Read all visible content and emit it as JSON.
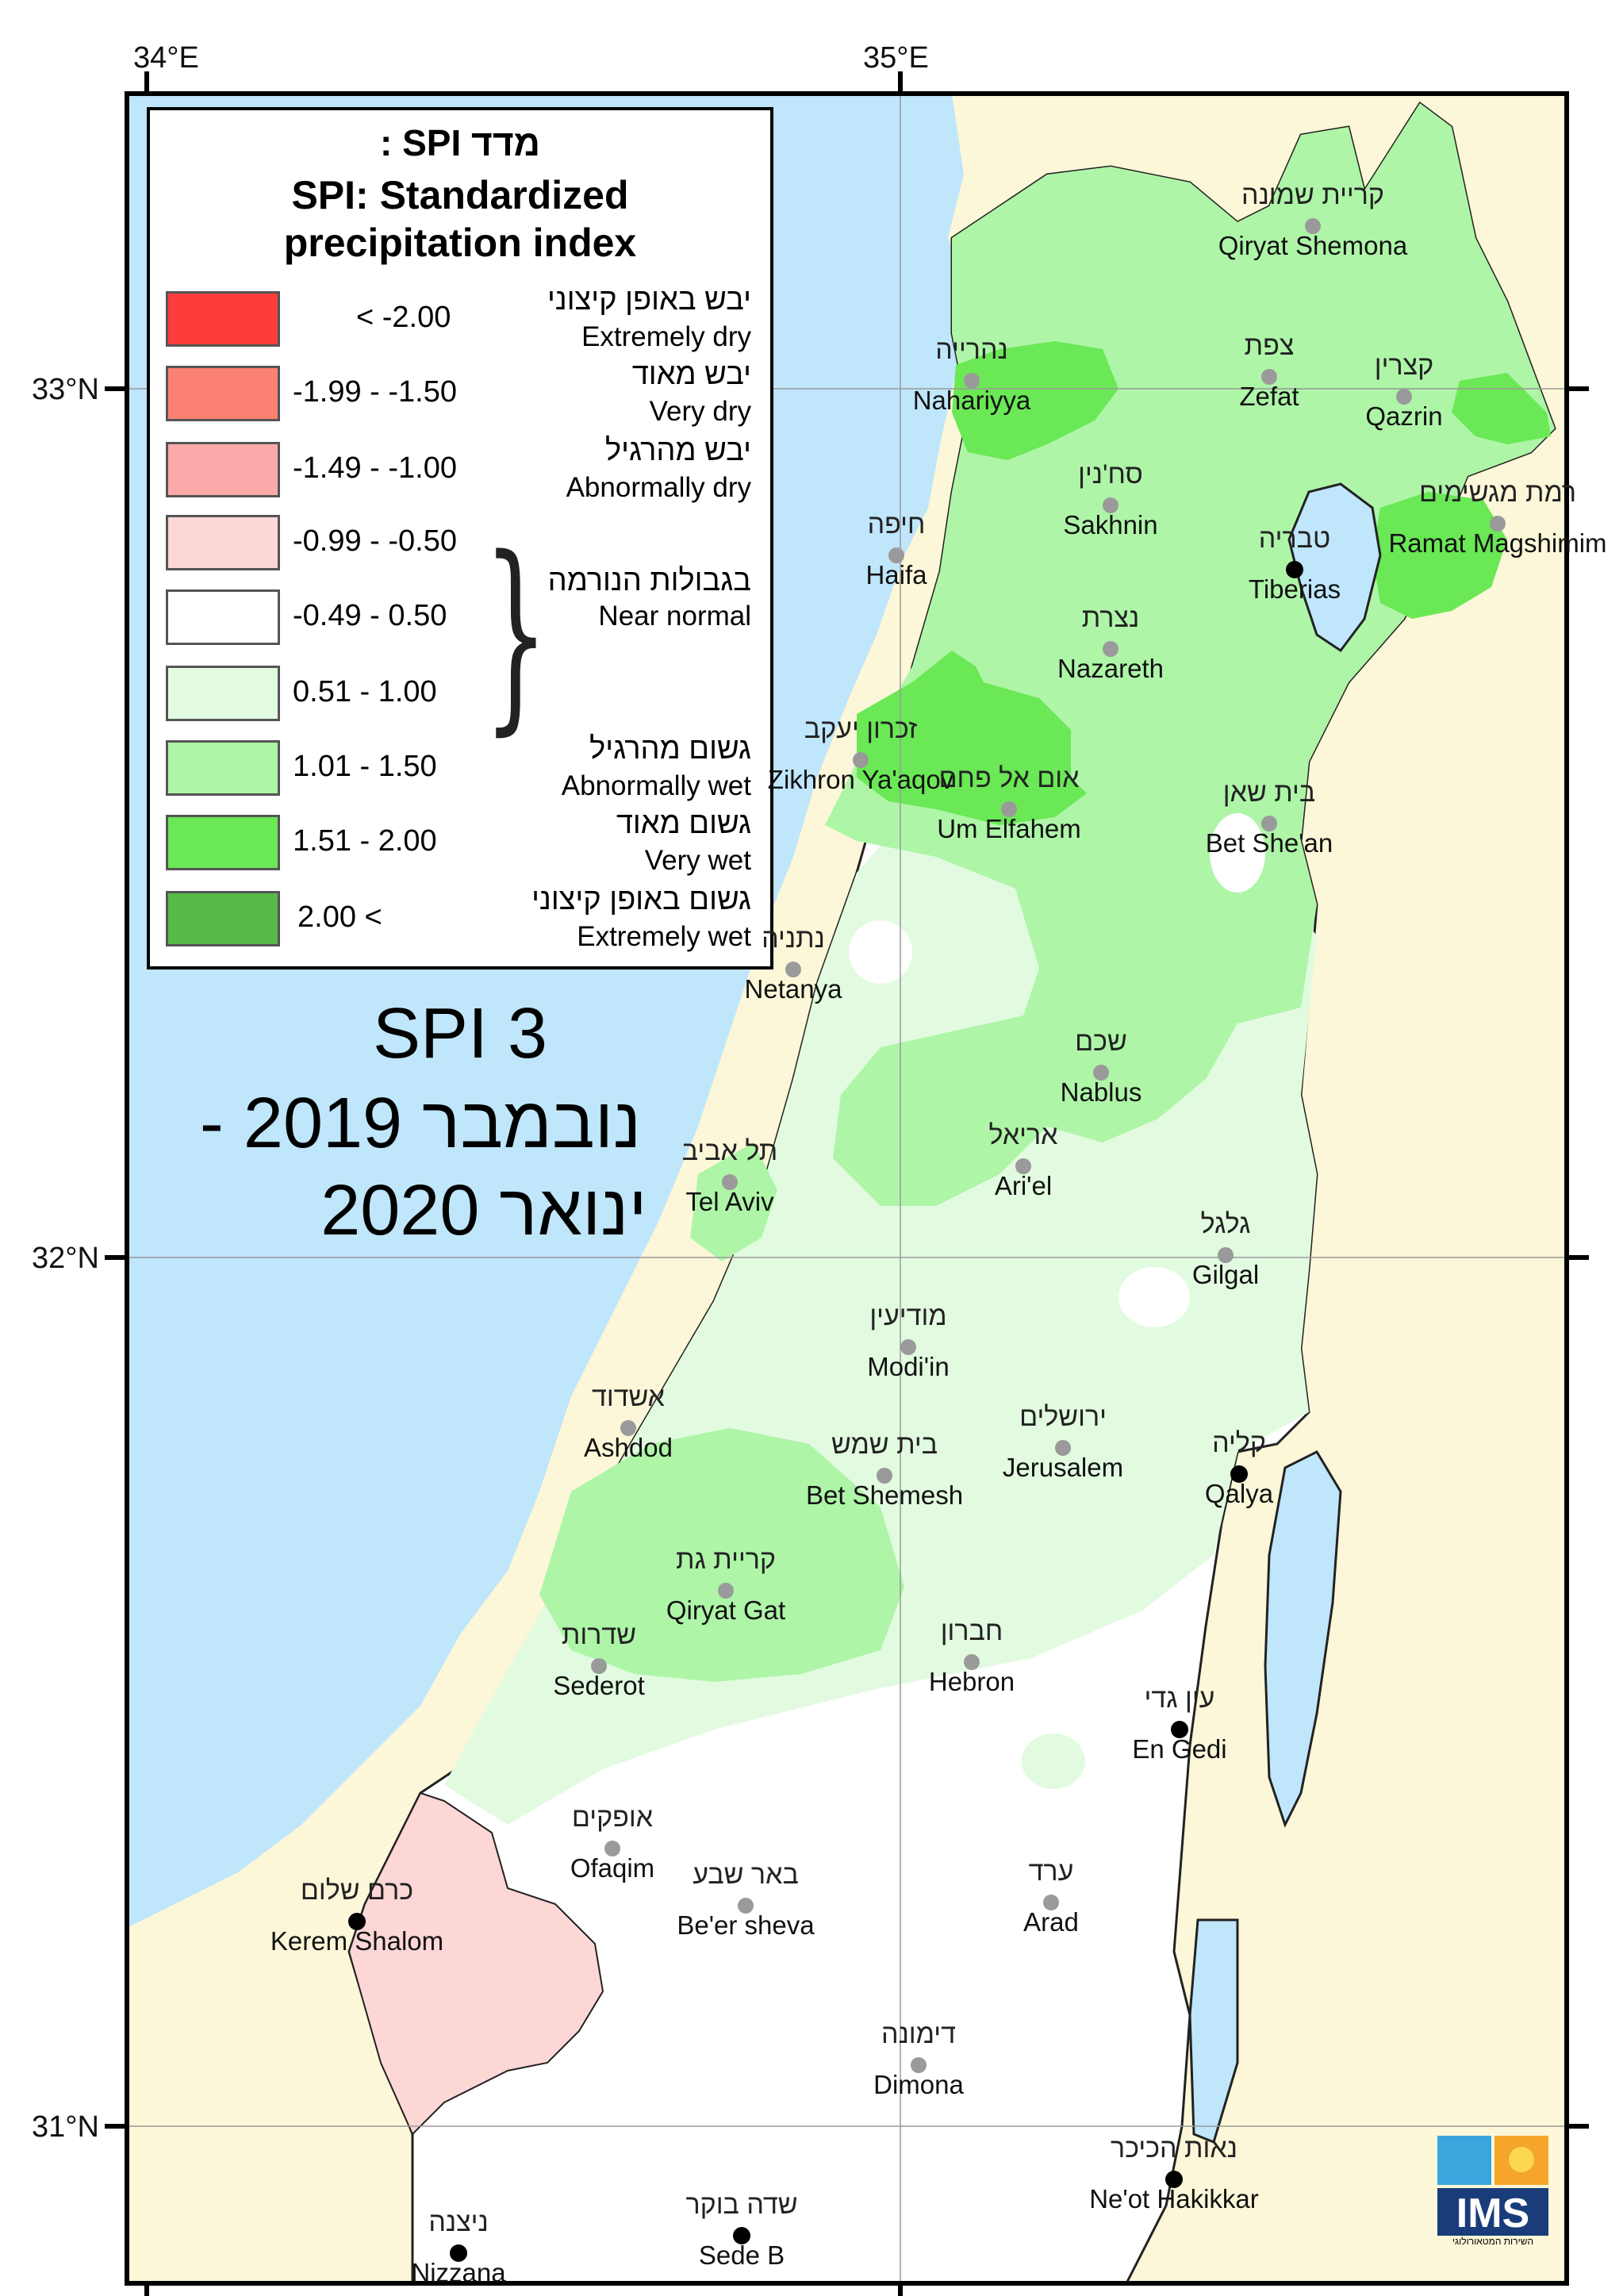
{
  "grid_labels": {
    "lon_34": "34°E",
    "lon_35": "35°E",
    "lat_33": "33°N",
    "lat_32": "32°N",
    "lat_31": "31°N"
  },
  "legend": {
    "title_he": "מדד SPI :",
    "title_en_1": "SPI: Standardized",
    "title_en_2": "precipitation index",
    "classes": [
      {
        "range": "< -2.00",
        "he": "יבש באופן קיצוני",
        "en": "Extremely dry",
        "color": "#ff3c3c"
      },
      {
        "range": "-1.99 - -1.50",
        "he": "יבש מאוד",
        "en": "Very dry",
        "color": "#fb8172"
      },
      {
        "range": "-1.49 - -1.00",
        "he": "יבש מהרגיל",
        "en": "Abnormally dry",
        "color": "#fbaaaa"
      },
      {
        "range": "-0.99 - -0.50",
        "he": "",
        "en": "",
        "color": "#fdd6d6"
      },
      {
        "range": "-0.49 - 0.50",
        "he": "בגבולות הנורמה",
        "en": "Near normal",
        "color": "#ffffff"
      },
      {
        "range": "0.51 - 1.00",
        "he": "",
        "en": "",
        "color": "#e2fbe0"
      },
      {
        "range": "1.01 - 1.50",
        "he": "גשום מהרגיל",
        "en": "Abnormally wet",
        "color": "#aef5a8"
      },
      {
        "range": "1.51 - 2.00",
        "he": "גשום מאוד",
        "en": "Very wet",
        "color": "#6ae855"
      },
      {
        "range": "2.00 <",
        "he": "גשום באופן קיצוני",
        "en": "Extremely wet",
        "color": "#57b947"
      }
    ]
  },
  "map_title": {
    "line1": "SPI 3",
    "line2": "נובמבר 2019  -",
    "line3": "ינואר 2020"
  },
  "colors": {
    "sea": "#bfe6fb",
    "outside_land": "#fcf7d8",
    "near_normal": "#ffffff",
    "slightly_wet": "#e2fbe0",
    "abnormally_wet": "#aef5a8",
    "very_wet": "#6ae855",
    "slightly_dry": "#fdd6d6",
    "lake": "#bfe6fb"
  },
  "cities": [
    {
      "he": "קריית שמונה",
      "en": "Qiryat Shemona",
      "dot": "gray"
    },
    {
      "he": "נהרייה",
      "en": "Nahariyya",
      "dot": "gray"
    },
    {
      "he": "צפת",
      "en": "Zefat",
      "dot": "gray"
    },
    {
      "he": "קצרין",
      "en": "Qazrin",
      "dot": "gray"
    },
    {
      "he": "סח'נין",
      "en": "Sakhnin",
      "dot": "gray"
    },
    {
      "he": "רמת מגשימים",
      "en": "Ramat Magshimim",
      "dot": "gray"
    },
    {
      "he": "חיפה",
      "en": "Haifa",
      "dot": "gray"
    },
    {
      "he": "טבריה",
      "en": "Tiberias",
      "dot": "black"
    },
    {
      "he": "נצרת",
      "en": "Nazareth",
      "dot": "gray"
    },
    {
      "he": "זכרון יעקב",
      "en": "Zikhron Ya'aqov",
      "dot": "gray"
    },
    {
      "he": "אום אל פחם",
      "en": "Um Elfahem",
      "dot": "gray"
    },
    {
      "he": "בית שאן",
      "en": "Bet She'an",
      "dot": "gray"
    },
    {
      "he": "נתניה",
      "en": "Netanya",
      "dot": "gray"
    },
    {
      "he": "שכם",
      "en": "Nablus",
      "dot": "gray"
    },
    {
      "he": "תל אביב",
      "en": "Tel Aviv",
      "dot": "gray"
    },
    {
      "he": "אריאל",
      "en": "Ari'el",
      "dot": "gray"
    },
    {
      "he": "גלגל",
      "en": "Gilgal",
      "dot": "gray"
    },
    {
      "he": "מודיעין",
      "en": "Modi'in",
      "dot": "gray"
    },
    {
      "he": "אשדוד",
      "en": "Ashdod",
      "dot": "gray"
    },
    {
      "he": "ירושלים",
      "en": "Jerusalem",
      "dot": "gray"
    },
    {
      "he": "בית שמש",
      "en": "Bet Shemesh",
      "dot": "gray"
    },
    {
      "he": "קליה",
      "en": "Qalya",
      "dot": "black"
    },
    {
      "he": "קריית גת",
      "en": "Qiryat Gat",
      "dot": "gray"
    },
    {
      "he": "שדרות",
      "en": "Sederot",
      "dot": "gray"
    },
    {
      "he": "חברון",
      "en": "Hebron",
      "dot": "gray"
    },
    {
      "he": "עין גדי",
      "en": "En Gedi",
      "dot": "black"
    },
    {
      "he": "אופקים",
      "en": "Ofaqim",
      "dot": "gray"
    },
    {
      "he": "כרם שלום",
      "en": "Kerem Shalom",
      "dot": "black"
    },
    {
      "he": "באר שבע",
      "en": "Be'er sheva",
      "dot": "gray"
    },
    {
      "he": "ערד",
      "en": "Arad",
      "dot": "gray"
    },
    {
      "he": "דימונה",
      "en": "Dimona",
      "dot": "gray"
    },
    {
      "he": "נאות הכיכר",
      "en": "Ne'ot Hakikkar",
      "dot": "black"
    },
    {
      "he": "ניצנה",
      "en": "Nizzana",
      "dot": "black"
    },
    {
      "he": "שדה בוקר",
      "en": "Sede B",
      "dot": "black"
    }
  ],
  "logo": {
    "text": "IMS",
    "sub": "השירות המטאורולוגי"
  }
}
